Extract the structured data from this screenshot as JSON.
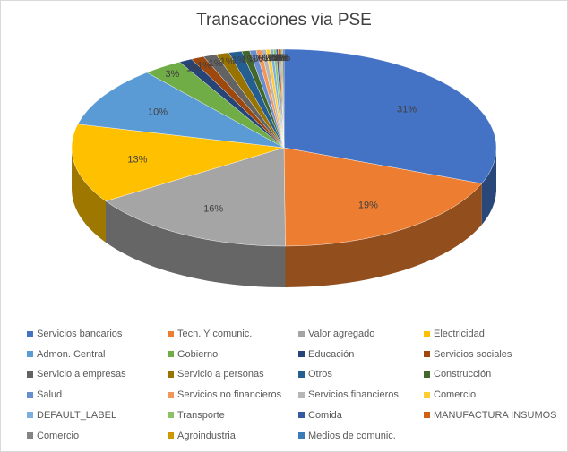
{
  "chart_data": {
    "type": "pie",
    "title": "Transacciones  via PSE",
    "labels": [
      "Servicios bancarios",
      "Tecn. Y comunic.",
      "Valor agregado",
      "Electricidad",
      "Admon. Central",
      "Gobierno",
      "Educación",
      "Servicios sociales",
      "Servicio a empresas",
      "Servicio a personas",
      "Otros",
      "Construcción",
      "Salud",
      "Servicios no financieros",
      "Servicios financieros",
      "Comercio",
      "DEFAULT_LABEL",
      "Transporte",
      "Comida",
      "MANUFACTURA INSUMOS",
      "Comercio",
      "Agroindustria",
      "Medios de comunic."
    ],
    "values": [
      31,
      19,
      16,
      13,
      10,
      3,
      1,
      1,
      1,
      1,
      1,
      0.6,
      0.5,
      0.4,
      0.35,
      0.3,
      0.25,
      0.2,
      0.15,
      0.15,
      0.1,
      0.1,
      0.1
    ],
    "data_labels": [
      "31%",
      "19%",
      "16%",
      "13%",
      "10%",
      "3%",
      "1%",
      "1%",
      "1%",
      "1%",
      "1%",
      "1%",
      "1%",
      "0%",
      "0%",
      "0%",
      "0%",
      "0%",
      "0%",
      "0%",
      "0%",
      "0%",
      "0%"
    ],
    "colors": [
      "#4472c4",
      "#ed7d31",
      "#a5a5a5",
      "#ffc000",
      "#5b9bd5",
      "#70ad47",
      "#264478",
      "#9e480e",
      "#636363",
      "#997300",
      "#255e91",
      "#43682b",
      "#698ed0",
      "#f1975a",
      "#b7b7b7",
      "#ffcd33",
      "#7cafdd",
      "#8cc168",
      "#335aa1",
      "#d26012",
      "#848484",
      "#cc9a00",
      "#3a7cba"
    ],
    "legend_position": "bottom"
  }
}
